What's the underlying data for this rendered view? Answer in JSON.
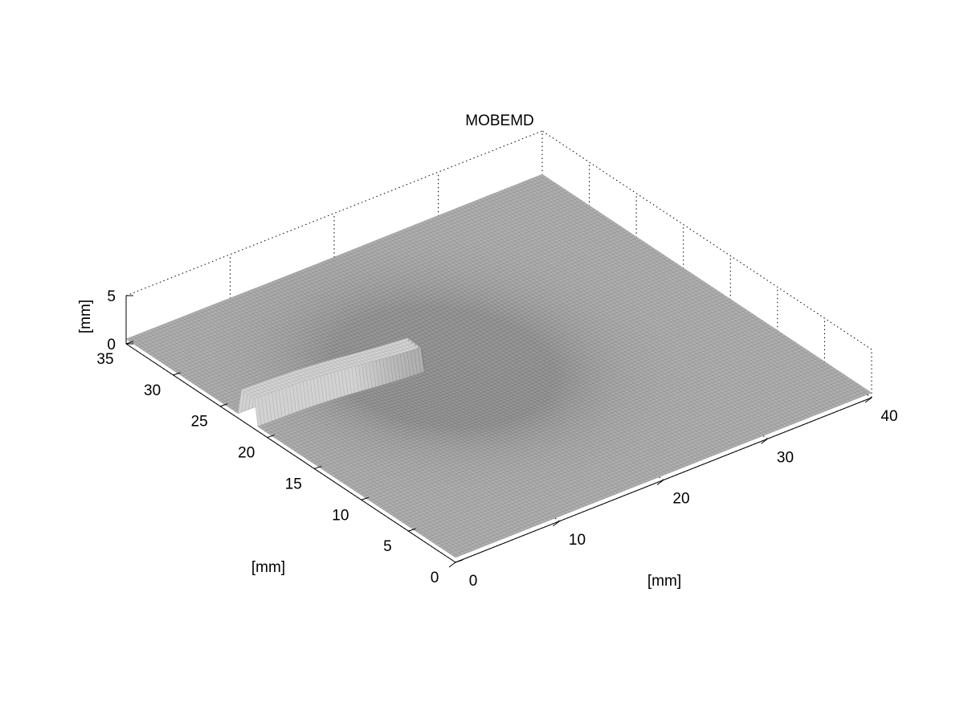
{
  "chart_data": {
    "type": "surface",
    "title": "MOBEMD",
    "xlabel": "[mm]",
    "ylabel": "[mm]",
    "zlabel": "[mm]",
    "xlim": [
      0,
      40
    ],
    "ylim": [
      0,
      35
    ],
    "zlim": [
      0,
      5
    ],
    "x_ticks": [
      "0",
      "10",
      "20",
      "30",
      "40"
    ],
    "y_ticks": [
      "0",
      "5",
      "10",
      "15",
      "20",
      "25",
      "30",
      "35"
    ],
    "z_ticks": [
      "0",
      "5"
    ],
    "grid": true,
    "colormap": "gray",
    "surface": {
      "base_height": 0.5,
      "ridge": {
        "x_from": 0,
        "x_to": 16,
        "y_center": 22,
        "half_width": 0.9,
        "height": 2.7
      },
      "depression": {
        "x_center": 17,
        "y_center": 20,
        "radius": 6,
        "depth": 1.2
      }
    }
  }
}
